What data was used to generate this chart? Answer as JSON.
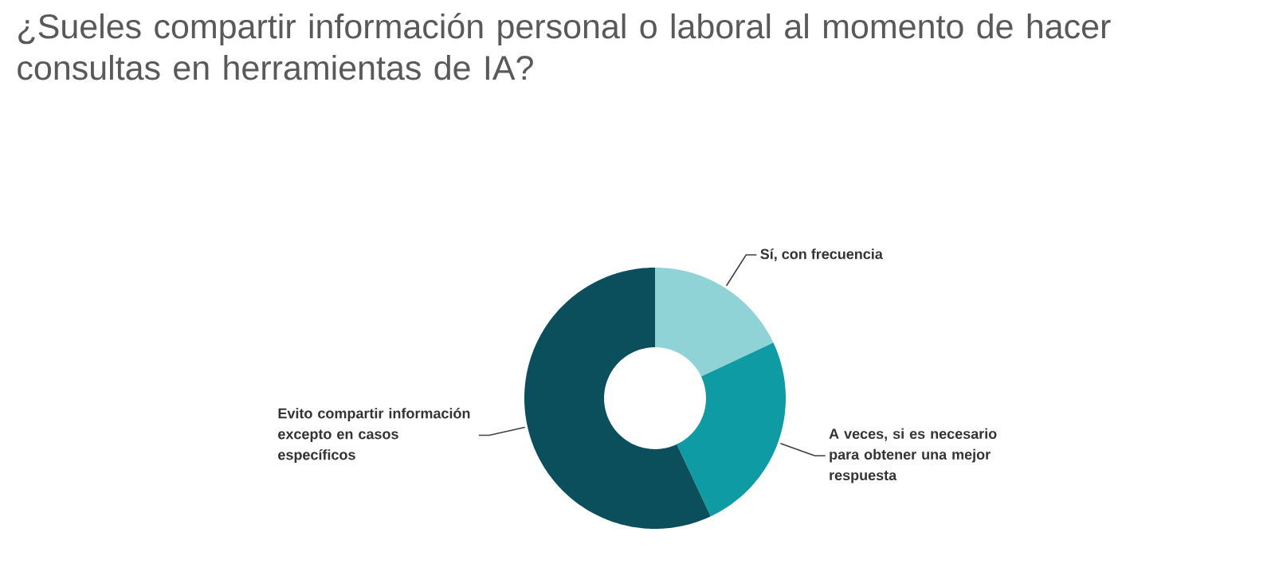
{
  "chart_data": {
    "type": "donut",
    "title": "¿Sueles compartir información personal o laboral al momento de hacer consultas en herramientas de IA?",
    "categories": [
      "Sí, con frecuencia",
      "A veces, si es necesario para obtener una mejor respuesta",
      "Evito compartir información excepto en casos específicos"
    ],
    "values": [
      18,
      25,
      57
    ],
    "colors": [
      "#8fd3d6",
      "#0e9ba3",
      "#0b4f5c"
    ],
    "legend": false
  }
}
